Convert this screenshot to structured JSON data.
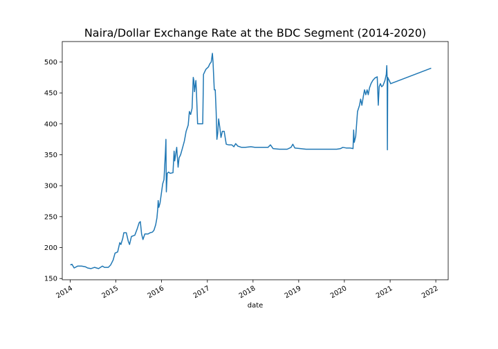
{
  "chart_data": {
    "type": "line",
    "title": "Naira/Dollar Exchange Rate at the BDC Segment (2014-2020)",
    "xlabel": "date",
    "ylabel": "",
    "x_ticks": [
      "2014",
      "2015",
      "2016",
      "2017",
      "2018",
      "2019",
      "2020",
      "2021",
      "2022"
    ],
    "y_ticks": [
      150,
      200,
      250,
      300,
      350,
      400,
      450,
      500
    ],
    "xlim": [
      "2013-10-29",
      "2022-04-10"
    ],
    "ylim": [
      148,
      533
    ],
    "grid": false,
    "legend": "none",
    "series": [
      {
        "color": "#1f77b4",
        "points": [
          [
            "2014-01-01",
            172
          ],
          [
            "2014-01-15",
            173
          ],
          [
            "2014-02-01",
            167
          ],
          [
            "2014-03-01",
            170
          ],
          [
            "2014-04-01",
            170
          ],
          [
            "2014-05-01",
            169
          ],
          [
            "2014-05-20",
            167
          ],
          [
            "2014-06-15",
            166
          ],
          [
            "2014-07-15",
            168
          ],
          [
            "2014-08-15",
            166
          ],
          [
            "2014-09-15",
            170
          ],
          [
            "2014-10-01",
            168
          ],
          [
            "2014-11-01",
            168
          ],
          [
            "2014-11-20",
            172
          ],
          [
            "2014-12-10",
            180
          ],
          [
            "2014-12-25",
            191
          ],
          [
            "2015-01-15",
            193
          ],
          [
            "2015-02-01",
            208
          ],
          [
            "2015-02-10",
            205
          ],
          [
            "2015-02-25",
            215
          ],
          [
            "2015-03-05",
            224
          ],
          [
            "2015-03-25",
            224
          ],
          [
            "2015-04-10",
            210
          ],
          [
            "2015-04-20",
            205
          ],
          [
            "2015-05-05",
            218
          ],
          [
            "2015-06-01",
            220
          ],
          [
            "2015-06-20",
            230
          ],
          [
            "2015-07-05",
            240
          ],
          [
            "2015-07-15",
            242
          ],
          [
            "2015-07-25",
            222
          ],
          [
            "2015-08-05",
            213
          ],
          [
            "2015-08-20",
            222
          ],
          [
            "2015-09-15",
            222
          ],
          [
            "2015-10-01",
            224
          ],
          [
            "2015-10-20",
            225
          ],
          [
            "2015-11-01",
            228
          ],
          [
            "2015-11-15",
            237
          ],
          [
            "2015-11-25",
            248
          ],
          [
            "2015-12-01",
            262
          ],
          [
            "2015-12-05",
            276
          ],
          [
            "2015-12-10",
            265
          ],
          [
            "2015-12-20",
            272
          ],
          [
            "2016-01-01",
            290
          ],
          [
            "2016-01-10",
            303
          ],
          [
            "2016-01-20",
            310
          ],
          [
            "2016-02-01",
            355
          ],
          [
            "2016-02-05",
            375
          ],
          [
            "2016-02-08",
            290
          ],
          [
            "2016-02-15",
            320
          ],
          [
            "2016-02-25",
            322
          ],
          [
            "2016-03-10",
            320
          ],
          [
            "2016-04-01",
            321
          ],
          [
            "2016-04-10",
            356
          ],
          [
            "2016-04-15",
            340
          ],
          [
            "2016-05-01",
            362
          ],
          [
            "2016-05-05",
            350
          ],
          [
            "2016-05-12",
            330
          ],
          [
            "2016-05-20",
            345
          ],
          [
            "2016-06-01",
            350
          ],
          [
            "2016-06-15",
            360
          ],
          [
            "2016-07-01",
            372
          ],
          [
            "2016-07-15",
            388
          ],
          [
            "2016-08-01",
            398
          ],
          [
            "2016-08-10",
            420
          ],
          [
            "2016-08-20",
            415
          ],
          [
            "2016-09-01",
            425
          ],
          [
            "2016-09-10",
            475
          ],
          [
            "2016-09-15",
            470
          ],
          [
            "2016-09-20",
            452
          ],
          [
            "2016-10-01",
            470
          ],
          [
            "2016-10-05",
            455
          ],
          [
            "2016-10-15",
            400
          ],
          [
            "2016-11-10",
            400
          ],
          [
            "2016-11-25",
            400
          ],
          [
            "2016-12-01",
            480
          ],
          [
            "2016-12-20",
            488
          ],
          [
            "2017-01-10",
            492
          ],
          [
            "2017-01-20",
            497
          ],
          [
            "2017-02-01",
            500
          ],
          [
            "2017-02-10",
            514
          ],
          [
            "2017-02-15",
            500
          ],
          [
            "2017-02-25",
            455
          ],
          [
            "2017-03-05",
            455
          ],
          [
            "2017-03-12",
            420
          ],
          [
            "2017-03-18",
            375
          ],
          [
            "2017-03-25",
            385
          ],
          [
            "2017-04-01",
            408
          ],
          [
            "2017-04-10",
            395
          ],
          [
            "2017-04-20",
            378
          ],
          [
            "2017-05-01",
            388
          ],
          [
            "2017-05-15",
            388
          ],
          [
            "2017-06-01",
            367
          ],
          [
            "2017-06-20",
            366
          ],
          [
            "2017-07-15",
            366
          ],
          [
            "2017-08-01",
            363
          ],
          [
            "2017-08-15",
            368
          ],
          [
            "2017-09-01",
            364
          ],
          [
            "2017-10-01",
            362
          ],
          [
            "2017-11-01",
            362
          ],
          [
            "2017-12-15",
            363
          ],
          [
            "2018-01-15",
            362
          ],
          [
            "2018-03-01",
            362
          ],
          [
            "2018-05-01",
            362
          ],
          [
            "2018-05-20",
            366
          ],
          [
            "2018-06-10",
            360
          ],
          [
            "2018-08-01",
            359
          ],
          [
            "2018-10-01",
            359
          ],
          [
            "2018-11-01",
            362
          ],
          [
            "2018-11-15",
            367
          ],
          [
            "2018-12-01",
            361
          ],
          [
            "2019-01-15",
            360
          ],
          [
            "2019-03-01",
            359
          ],
          [
            "2019-05-01",
            359
          ],
          [
            "2019-07-01",
            359
          ],
          [
            "2019-09-01",
            359
          ],
          [
            "2019-11-01",
            359
          ],
          [
            "2019-12-01",
            360
          ],
          [
            "2019-12-20",
            362
          ],
          [
            "2020-01-15",
            361
          ],
          [
            "2020-02-15",
            361
          ],
          [
            "2020-03-10",
            360
          ],
          [
            "2020-03-15",
            390
          ],
          [
            "2020-03-20",
            370
          ],
          [
            "2020-04-01",
            380
          ],
          [
            "2020-04-15",
            420
          ],
          [
            "2020-05-01",
            430
          ],
          [
            "2020-05-10",
            440
          ],
          [
            "2020-05-20",
            430
          ],
          [
            "2020-06-01",
            445
          ],
          [
            "2020-06-10",
            455
          ],
          [
            "2020-06-20",
            447
          ],
          [
            "2020-07-01",
            455
          ],
          [
            "2020-07-10",
            447
          ],
          [
            "2020-07-20",
            458
          ],
          [
            "2020-08-01",
            465
          ],
          [
            "2020-08-15",
            470
          ],
          [
            "2020-09-01",
            474
          ],
          [
            "2020-09-20",
            476
          ],
          [
            "2020-09-28",
            430
          ],
          [
            "2020-10-05",
            460
          ],
          [
            "2020-10-15",
            465
          ],
          [
            "2020-10-25",
            460
          ],
          [
            "2020-11-05",
            462
          ],
          [
            "2020-11-20",
            470
          ],
          [
            "2020-12-01",
            480
          ],
          [
            "2020-12-05",
            494
          ],
          [
            "2020-12-08",
            475
          ],
          [
            "2020-12-10",
            358
          ],
          [
            "2020-12-13",
            475
          ],
          [
            "2020-12-25",
            470
          ],
          [
            "2021-01-05",
            465
          ],
          [
            "2021-11-25",
            490
          ]
        ]
      }
    ]
  }
}
